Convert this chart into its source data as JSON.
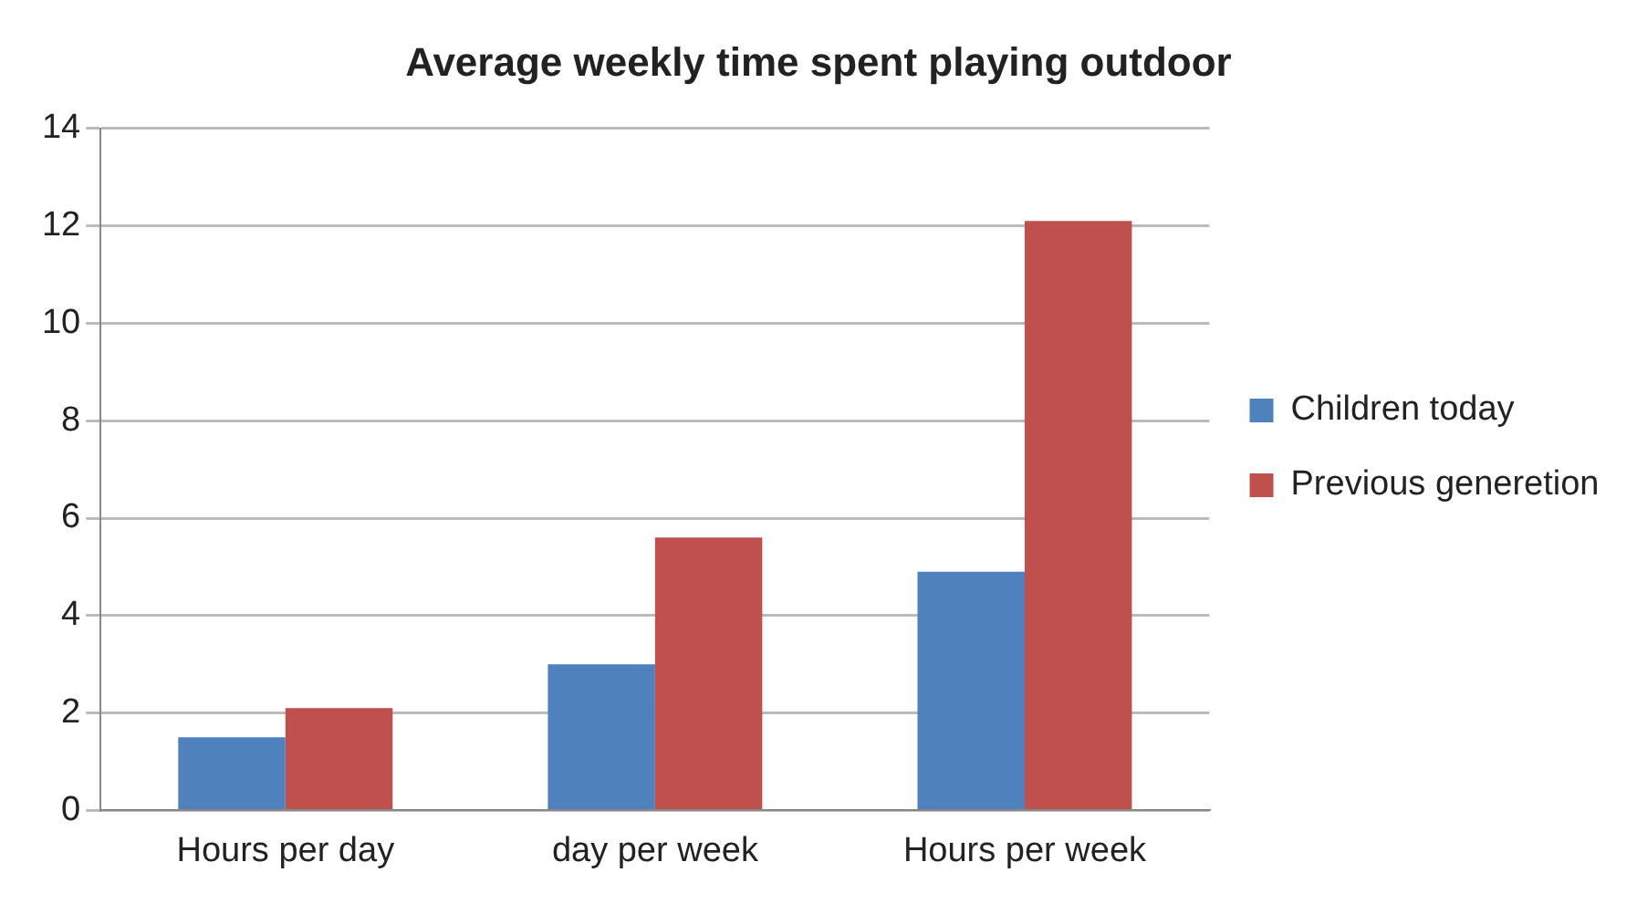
{
  "chart_data": {
    "type": "bar",
    "title": "Average weekly time spent playing outdoor",
    "categories": [
      "Hours per day",
      "day per week",
      "Hours per week"
    ],
    "series": [
      {
        "name": "Children today",
        "color": "#4f81bd",
        "values": [
          1.5,
          3.0,
          4.9
        ]
      },
      {
        "name": "Previous generetion",
        "color": "#c0504d",
        "values": [
          2.1,
          5.6,
          12.1
        ]
      }
    ],
    "ylim": [
      0,
      14
    ],
    "yticks": [
      0,
      2,
      4,
      6,
      8,
      10,
      12,
      14
    ],
    "grid": "y",
    "legend": "right"
  }
}
